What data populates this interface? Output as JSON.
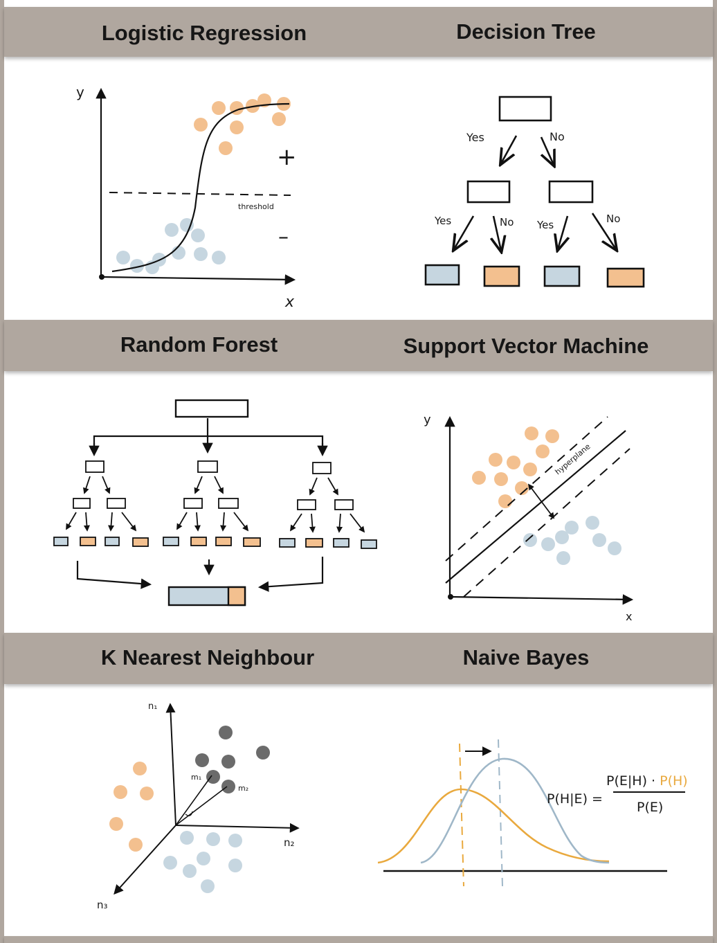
{
  "panels": {
    "logistic_regression": {
      "title": "Logistic Regression",
      "y_label": "y",
      "x_label": "x",
      "threshold_label": "threshold",
      "plus_label": "+",
      "minus_label": "–"
    },
    "decision_tree": {
      "title": "Decision Tree",
      "yes_label": "Yes",
      "no_label": "No"
    },
    "random_forest": {
      "title": "Random Forest"
    },
    "svm": {
      "title": "Support Vector Machine",
      "y_label": "y",
      "x_label": "x",
      "hyperplane_label": "hyperplane"
    },
    "knn": {
      "title": "K Nearest Neighbour",
      "n1_label": "n₁",
      "n2_label": "n₂",
      "n3_label": "n₃",
      "m1_label": "m₁",
      "m2_label": "m₂"
    },
    "naive_bayes": {
      "title": "Naive Bayes",
      "lhs": "P(H|E) =",
      "num_a": "P(E|H) · ",
      "num_b": "P(H)",
      "den": "P(E)"
    }
  },
  "colors": {
    "band": "#b0a79f",
    "orange": "#f3c08f",
    "blue": "#c6d6e0",
    "dark_dot": "#6b6b6b",
    "orange_curve": "#e9a93e",
    "blue_curve": "#9fb7c8"
  }
}
